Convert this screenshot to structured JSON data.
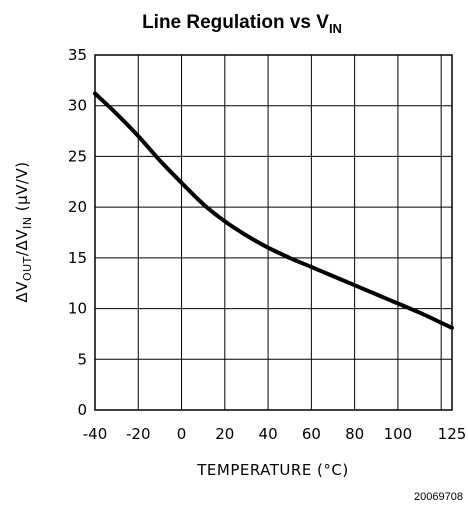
{
  "chart_data": {
    "type": "line",
    "title": "Line Regulation vs V",
    "title_subscript": "IN",
    "xlabel": "TEMPERATURE (°C)",
    "ylabel_prefix": "ΔV",
    "ylabel_sub1": "OUT",
    "ylabel_mid": "/ΔV",
    "ylabel_sub2": "IN",
    "ylabel_suffix": " (μV/V)",
    "xlim": [
      -40,
      125
    ],
    "ylim": [
      0,
      35
    ],
    "x_ticks": [
      -40,
      -20,
      0,
      20,
      40,
      60,
      80,
      100,
      125
    ],
    "x_tick_labels": [
      "-40",
      "-20",
      "0",
      "20",
      "40",
      "60",
      "80",
      "100",
      "125"
    ],
    "y_ticks": [
      0,
      5,
      10,
      15,
      20,
      25,
      30,
      35
    ],
    "y_tick_labels": [
      "0",
      "5",
      "10",
      "15",
      "20",
      "25",
      "30",
      "35"
    ],
    "grid": true,
    "series": [
      {
        "x": [
          -40,
          -30,
          -20,
          -10,
          0,
          10,
          20,
          30,
          40,
          50,
          60,
          70,
          80,
          90,
          100,
          110,
          120,
          125
        ],
        "y": [
          31.2,
          29.2,
          27.0,
          24.6,
          22.4,
          20.3,
          18.6,
          17.2,
          16.0,
          15.0,
          14.1,
          13.2,
          12.3,
          11.4,
          10.5,
          9.6,
          8.6,
          8.1
        ]
      }
    ]
  },
  "figure_id": "20069708"
}
